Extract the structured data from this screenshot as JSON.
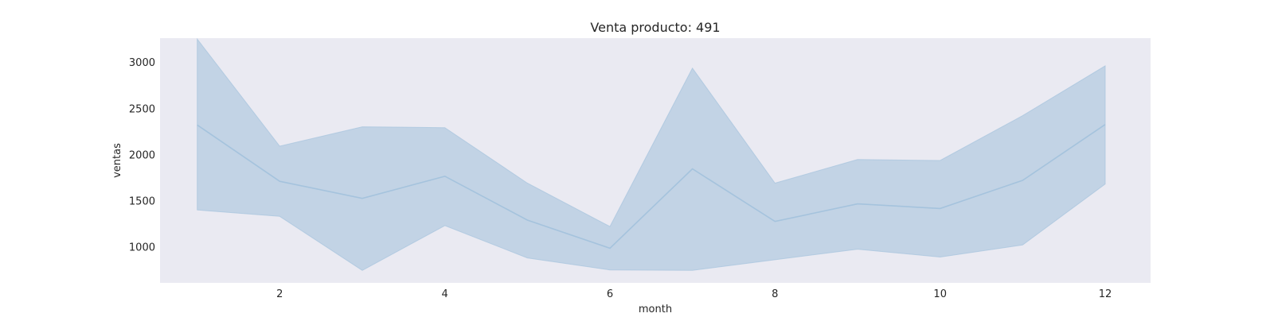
{
  "chart_data": {
    "type": "line",
    "title": "Venta producto: 491",
    "xlabel": "month",
    "ylabel": "ventas",
    "xlim": [
      0.55,
      12.55
    ],
    "ylim": [
      610,
      3260
    ],
    "xticks": [
      2,
      4,
      6,
      8,
      10,
      12
    ],
    "yticks": [
      1000,
      1500,
      2000,
      2500,
      3000
    ],
    "grid": false,
    "x": [
      1,
      2,
      3,
      4,
      5,
      6,
      7,
      8,
      9,
      10,
      11,
      12
    ],
    "series": [
      {
        "values": [
          2320,
          1710,
          1525,
          1765,
          1290,
          985,
          1845,
          1275,
          1465,
          1415,
          1720,
          2325
        ],
        "ci_lower": [
          1400,
          1330,
          745,
          1230,
          880,
          750,
          745,
          860,
          975,
          890,
          1020,
          1680
        ],
        "ci_upper": [
          3250,
          2090,
          2300,
          2290,
          1690,
          1220,
          2935,
          1690,
          1945,
          1935,
          2420,
          2960
        ]
      }
    ],
    "colors": {
      "line": "#a5c3dd",
      "band": "#c2d3e5",
      "plot_bg": "#eaeaf2",
      "page_bg": "#ffffff",
      "text": "#262626"
    }
  }
}
